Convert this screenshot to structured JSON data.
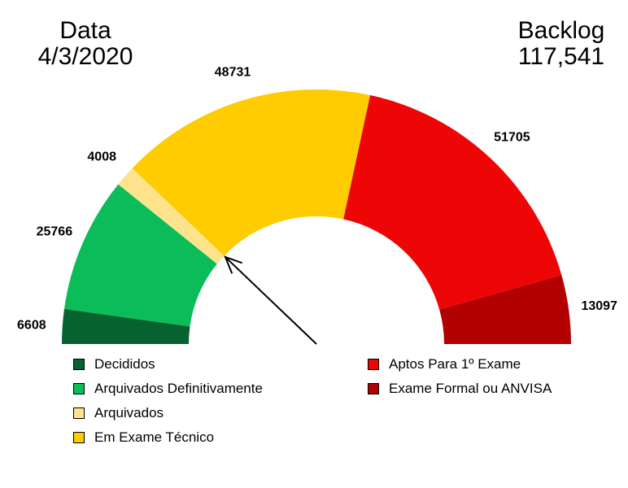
{
  "header": {
    "date_label": "Data",
    "date_value": "4/3/2020",
    "backlog_label": "Backlog",
    "backlog_value": "117,541"
  },
  "chart_data": {
    "type": "pie",
    "variant": "half-donut",
    "title": "",
    "slices": [
      {
        "name": "Decididos",
        "value": 6608,
        "label": "6608",
        "color": "#066330"
      },
      {
        "name": "Arquivados Definitivamente",
        "value": 25766,
        "label": "25766",
        "color": "#0bbd58"
      },
      {
        "name": "Arquivados",
        "value": 4008,
        "label": "4008",
        "color": "#fde38c"
      },
      {
        "name": "Em Exame Técnico",
        "value": 48731,
        "label": "48731",
        "color": "#fecc00"
      },
      {
        "name": "Aptos Para 1º Exame",
        "value": 51705,
        "label": "51705",
        "color": "#ee0505"
      },
      {
        "name": "Exame Formal ou ANVISA",
        "value": 13097,
        "label": "13097",
        "color": "#b30000"
      }
    ],
    "pointer": {
      "points_to_value": 36382
    },
    "legend": {
      "placement": "bottom",
      "columns": [
        [
          "Decididos",
          "Arquivados Definitivamente",
          "Arquivados",
          "Em Exame Técnico"
        ],
        [
          "Aptos Para 1º Exame",
          "Exame Formal ou ANVISA"
        ]
      ]
    }
  }
}
